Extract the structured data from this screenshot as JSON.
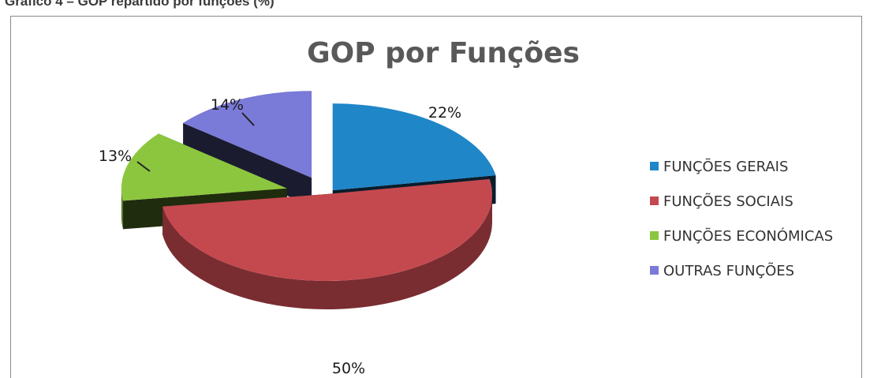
{
  "caption": "Gráfico 4 – GOP repartido por funções (%)",
  "chart_data": {
    "type": "pie",
    "title": "GOP por Funções",
    "legend_position": "right",
    "series": [
      {
        "name": "FUNÇÕES GERAIS",
        "value": 22,
        "label": "22%",
        "color": "#1f86c8"
      },
      {
        "name": "FUNÇÕES SOCIAIS",
        "value": 50,
        "label": "50%",
        "color": "#c4494f"
      },
      {
        "name": "FUNÇÕES ECONÓMICAS",
        "value": 13,
        "label": "13%",
        "color": "#8cc63f"
      },
      {
        "name": "OUTRAS FUNÇÕES",
        "value": 14,
        "label": "14%",
        "color": "#7a7ad8"
      }
    ]
  }
}
